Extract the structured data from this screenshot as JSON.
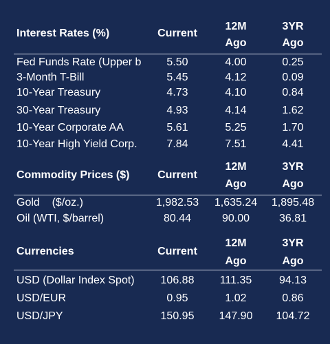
{
  "interest": {
    "title": "Interest Rates (%)",
    "h_current": "Current",
    "h_12m_top": "12M",
    "h_12m_bot": "Ago",
    "h_3yr_top": "3YR",
    "h_3yr_bot": "Ago",
    "rows": [
      {
        "label": "Fed Funds Rate (Upper b",
        "current": "5.50",
        "m12": "4.00",
        "y3": "0.25"
      },
      {
        "label": "3-Month T-Bill",
        "current": "5.45",
        "m12": "4.12",
        "y3": "0.09"
      },
      {
        "label": "10-Year Treasury",
        "current": "4.73",
        "m12": "4.10",
        "y3": "0.84"
      },
      {
        "label": "30-Year Treasury",
        "current": "4.93",
        "m12": "4.14",
        "y3": "1.62"
      },
      {
        "label": "10-Year Corporate AA",
        "current": "5.61",
        "m12": "5.25",
        "y3": "1.70"
      },
      {
        "label": "10-Year High Yield Corp.",
        "current": "7.84",
        "m12": "7.51",
        "y3": "4.41"
      }
    ]
  },
  "commodity": {
    "title": "Commodity Prices ($)",
    "h_current": "Current",
    "h_12m_top": "12M",
    "h_12m_bot": "Ago",
    "h_3yr_top": "3YR",
    "h_3yr_bot": "Ago",
    "rows": [
      {
        "label": "Gold    ($/oz.)",
        "current": "1,982.53",
        "m12": "1,635.24",
        "y3": "1,895.48"
      },
      {
        "label": "Oil (WTI, $/barrel)",
        "current": "80.44",
        "m12": "90.00",
        "y3": "36.81"
      }
    ]
  },
  "currency": {
    "title": "Currencies",
    "h_current": "Current",
    "h_12m_top": "12M",
    "h_12m_bot": "Ago",
    "h_3yr_top": "3YR",
    "h_3yr_bot": "Ago",
    "rows": [
      {
        "label": "USD (Dollar Index Spot)",
        "current": "106.88",
        "m12": "111.35",
        "y3": "94.13"
      },
      {
        "label": "USD/EUR",
        "current": "0.95",
        "m12": "1.02",
        "y3": "0.86"
      },
      {
        "label": "USD/JPY",
        "current": "150.95",
        "m12": "147.90",
        "y3": "104.72"
      }
    ]
  }
}
